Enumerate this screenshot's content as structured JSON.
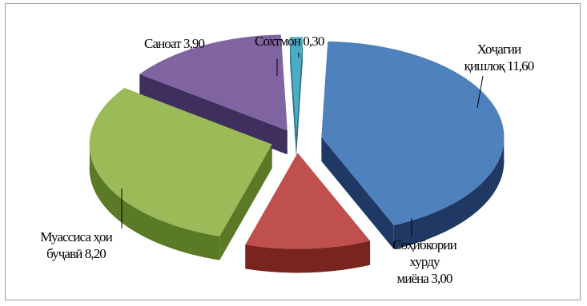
{
  "chart_data": {
    "type": "pie",
    "title": "",
    "slices": [
      {
        "label": "Хоҷагии қишлоқ 11,60",
        "value": 11.6,
        "color": "#4f81bd"
      },
      {
        "label": "Соҳибкории хурду миёна 3,00",
        "value": 3.0,
        "color": "#c0504d"
      },
      {
        "label": "Муассиса ҳои буҷавӣ 8,20",
        "value": 8.2,
        "color": "#9bbb59"
      },
      {
        "label": "Саноат 3,90",
        "value": 3.9,
        "color": "#8064a2"
      },
      {
        "label": "Сохтмон 0,30",
        "value": 0.3,
        "color": "#4bacc6"
      }
    ],
    "labels": {
      "agri": [
        "Хоҷагии",
        "қишлоқ 11,60"
      ],
      "sme": [
        "Соҳибкории",
        "хурду",
        "миёна 3,00"
      ],
      "budget": [
        "Муассиса ҳои",
        "буҷавӣ 8,20"
      ],
      "industry": [
        "Саноат 3,90"
      ],
      "construction": [
        "Сохтмон 0,30"
      ]
    }
  }
}
